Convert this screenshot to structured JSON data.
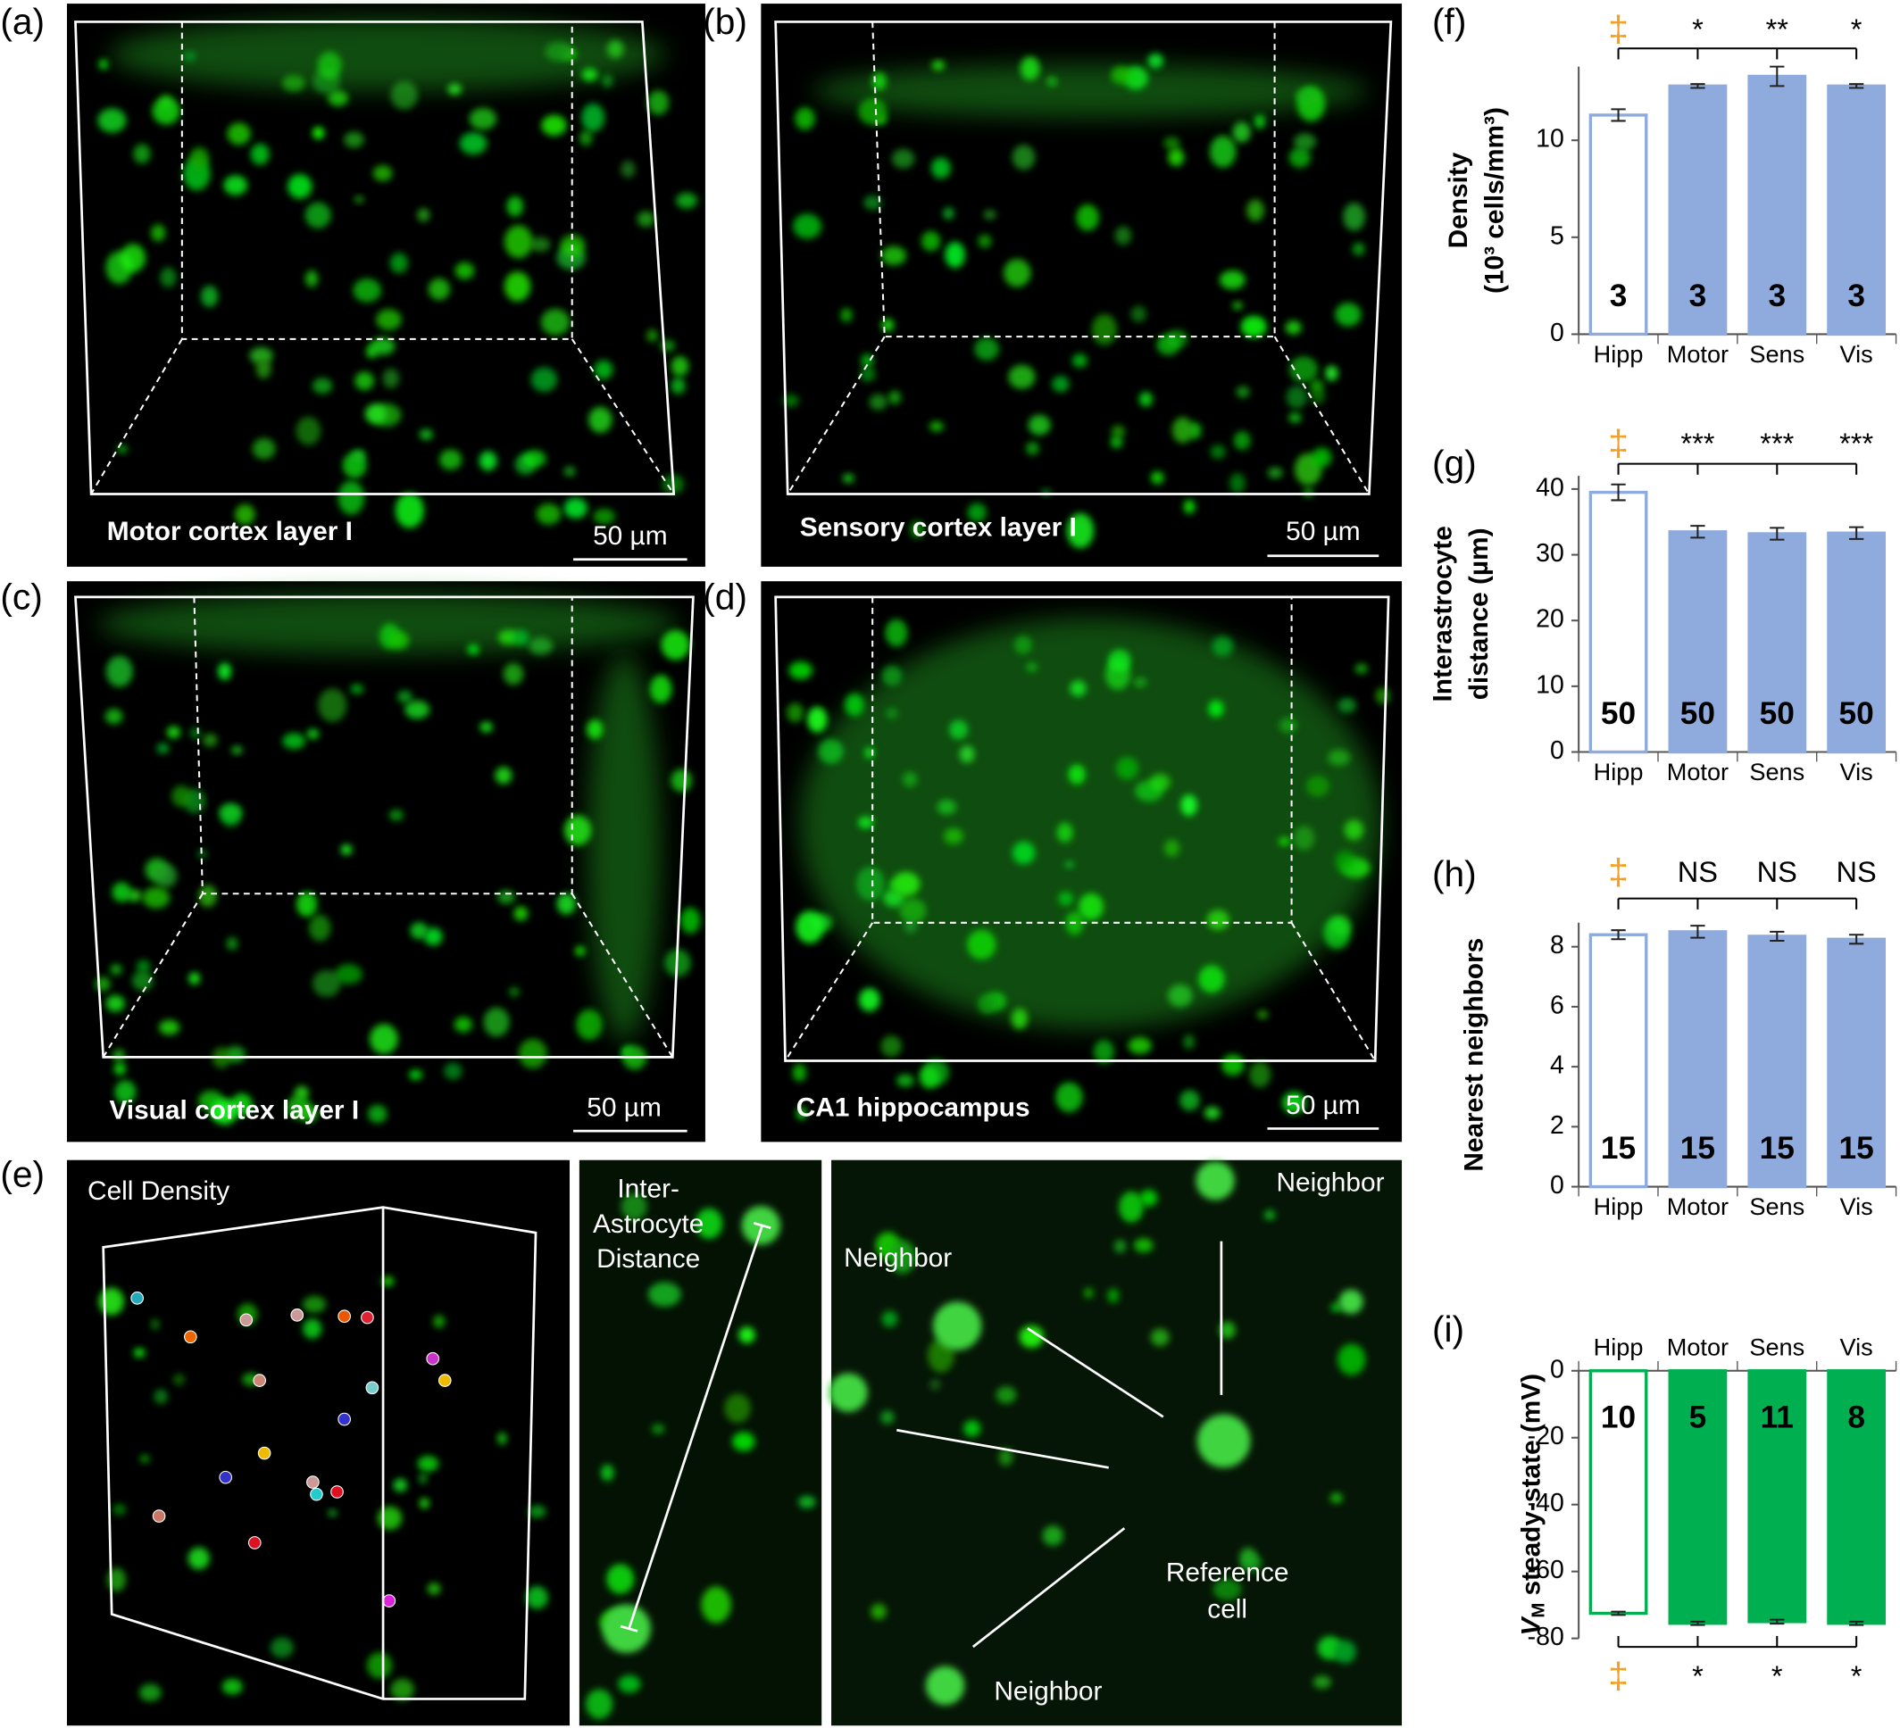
{
  "panels": [
    {
      "label": "(a)",
      "caption": "Motor cortex layer I",
      "scale_bar": "50 µm"
    },
    {
      "label": "(b)",
      "caption": "Sensory cortex layer I",
      "scale_bar": "50 µm"
    },
    {
      "label": "(c)",
      "caption": "Visual cortex layer I",
      "scale_bar": "50 µm"
    },
    {
      "label": "(d)",
      "caption": "CA1 hippocampus",
      "scale_bar": "50 µm"
    }
  ],
  "panel_e": {
    "label": "(e)",
    "cell_density": "Cell Density",
    "distance_label": [
      "Inter-",
      "Astrocyte",
      "Distance"
    ],
    "neighbor_labels": [
      "Neighbor",
      "Neighbor",
      "Neighbor"
    ],
    "reference_label": [
      "Reference",
      "cell"
    ]
  },
  "chart_data": [
    {
      "type": "bar",
      "panel_label": "(f)",
      "ylabel": [
        "Density",
        "(10³ cells/mm³)"
      ],
      "categories": [
        "Hipp",
        "Motor",
        "Sens",
        "Vis"
      ],
      "values": [
        11.3,
        12.8,
        13.3,
        12.8
      ],
      "errors": [
        0.3,
        0.1,
        0.5,
        0.1
      ],
      "n": [
        3,
        3,
        3,
        3
      ],
      "colors": [
        "#ffffff",
        "#8faadc",
        "#8faadc",
        "#8faadc"
      ],
      "edge_color": "#8faadc",
      "ylim": [
        0,
        13.8
      ],
      "yticks": [
        0,
        5,
        10
      ],
      "xaxis_position": "bottom",
      "significance": [
        "‡",
        "*",
        "**",
        "*"
      ],
      "significance_colors": [
        "#f5a020",
        "#000000",
        "#000000",
        "#000000"
      ]
    },
    {
      "type": "bar",
      "panel_label": "(g)",
      "ylabel": [
        "Interastrocyte",
        "distance (µm)"
      ],
      "categories": [
        "Hipp",
        "Motor",
        "Sens",
        "Vis"
      ],
      "values": [
        39.5,
        33.5,
        33.2,
        33.3
      ],
      "errors": [
        1.2,
        0.9,
        0.9,
        0.9
      ],
      "n": [
        50,
        50,
        50,
        50
      ],
      "colors": [
        "#ffffff",
        "#8faadc",
        "#8faadc",
        "#8faadc"
      ],
      "edge_color": "#8faadc",
      "ylim": [
        0,
        42
      ],
      "yticks": [
        0,
        10,
        20,
        30,
        40
      ],
      "xaxis_position": "bottom",
      "significance": [
        "‡",
        "***",
        "***",
        "***"
      ],
      "significance_colors": [
        "#f5a020",
        "#000000",
        "#000000",
        "#000000"
      ]
    },
    {
      "type": "bar",
      "panel_label": "(h)",
      "ylabel": [
        "Nearest neighbors"
      ],
      "categories": [
        "Hipp",
        "Motor",
        "Sens",
        "Vis"
      ],
      "values": [
        8.4,
        8.5,
        8.35,
        8.25
      ],
      "errors": [
        0.15,
        0.2,
        0.15,
        0.15
      ],
      "n": [
        15,
        15,
        15,
        15
      ],
      "colors": [
        "#ffffff",
        "#8faadc",
        "#8faadc",
        "#8faadc"
      ],
      "edge_color": "#8faadc",
      "ylim": [
        0,
        8.8
      ],
      "yticks": [
        0,
        2,
        4,
        6,
        8
      ],
      "xaxis_position": "bottom",
      "significance": [
        "‡",
        "NS",
        "NS",
        "NS"
      ],
      "significance_colors": [
        "#f5a020",
        "#000000",
        "#000000",
        "#000000"
      ]
    },
    {
      "type": "bar",
      "panel_label": "(i)",
      "ylabel_symbol": "V",
      "ylabel_subscript": "M",
      "ylabel": [
        "steady-state (mV)"
      ],
      "categories": [
        "Hipp",
        "Motor",
        "Sens",
        "Vis"
      ],
      "values": [
        -72.5,
        -75.5,
        -75,
        -75.5
      ],
      "errors": [
        0.5,
        0.5,
        0.6,
        0.5
      ],
      "n": [
        10,
        5,
        11,
        8
      ],
      "colors": [
        "#ffffff",
        "#00b050",
        "#00b050",
        "#00b050"
      ],
      "edge_color": "#00b050",
      "ylim": [
        -80,
        0
      ],
      "yticks": [
        0,
        -20,
        -40,
        -60,
        -80
      ],
      "xaxis_position": "top",
      "significance": [
        "‡",
        "*",
        "*",
        "*"
      ],
      "significance_colors": [
        "#f5a020",
        "#000000",
        "#000000",
        "#000000"
      ]
    }
  ]
}
